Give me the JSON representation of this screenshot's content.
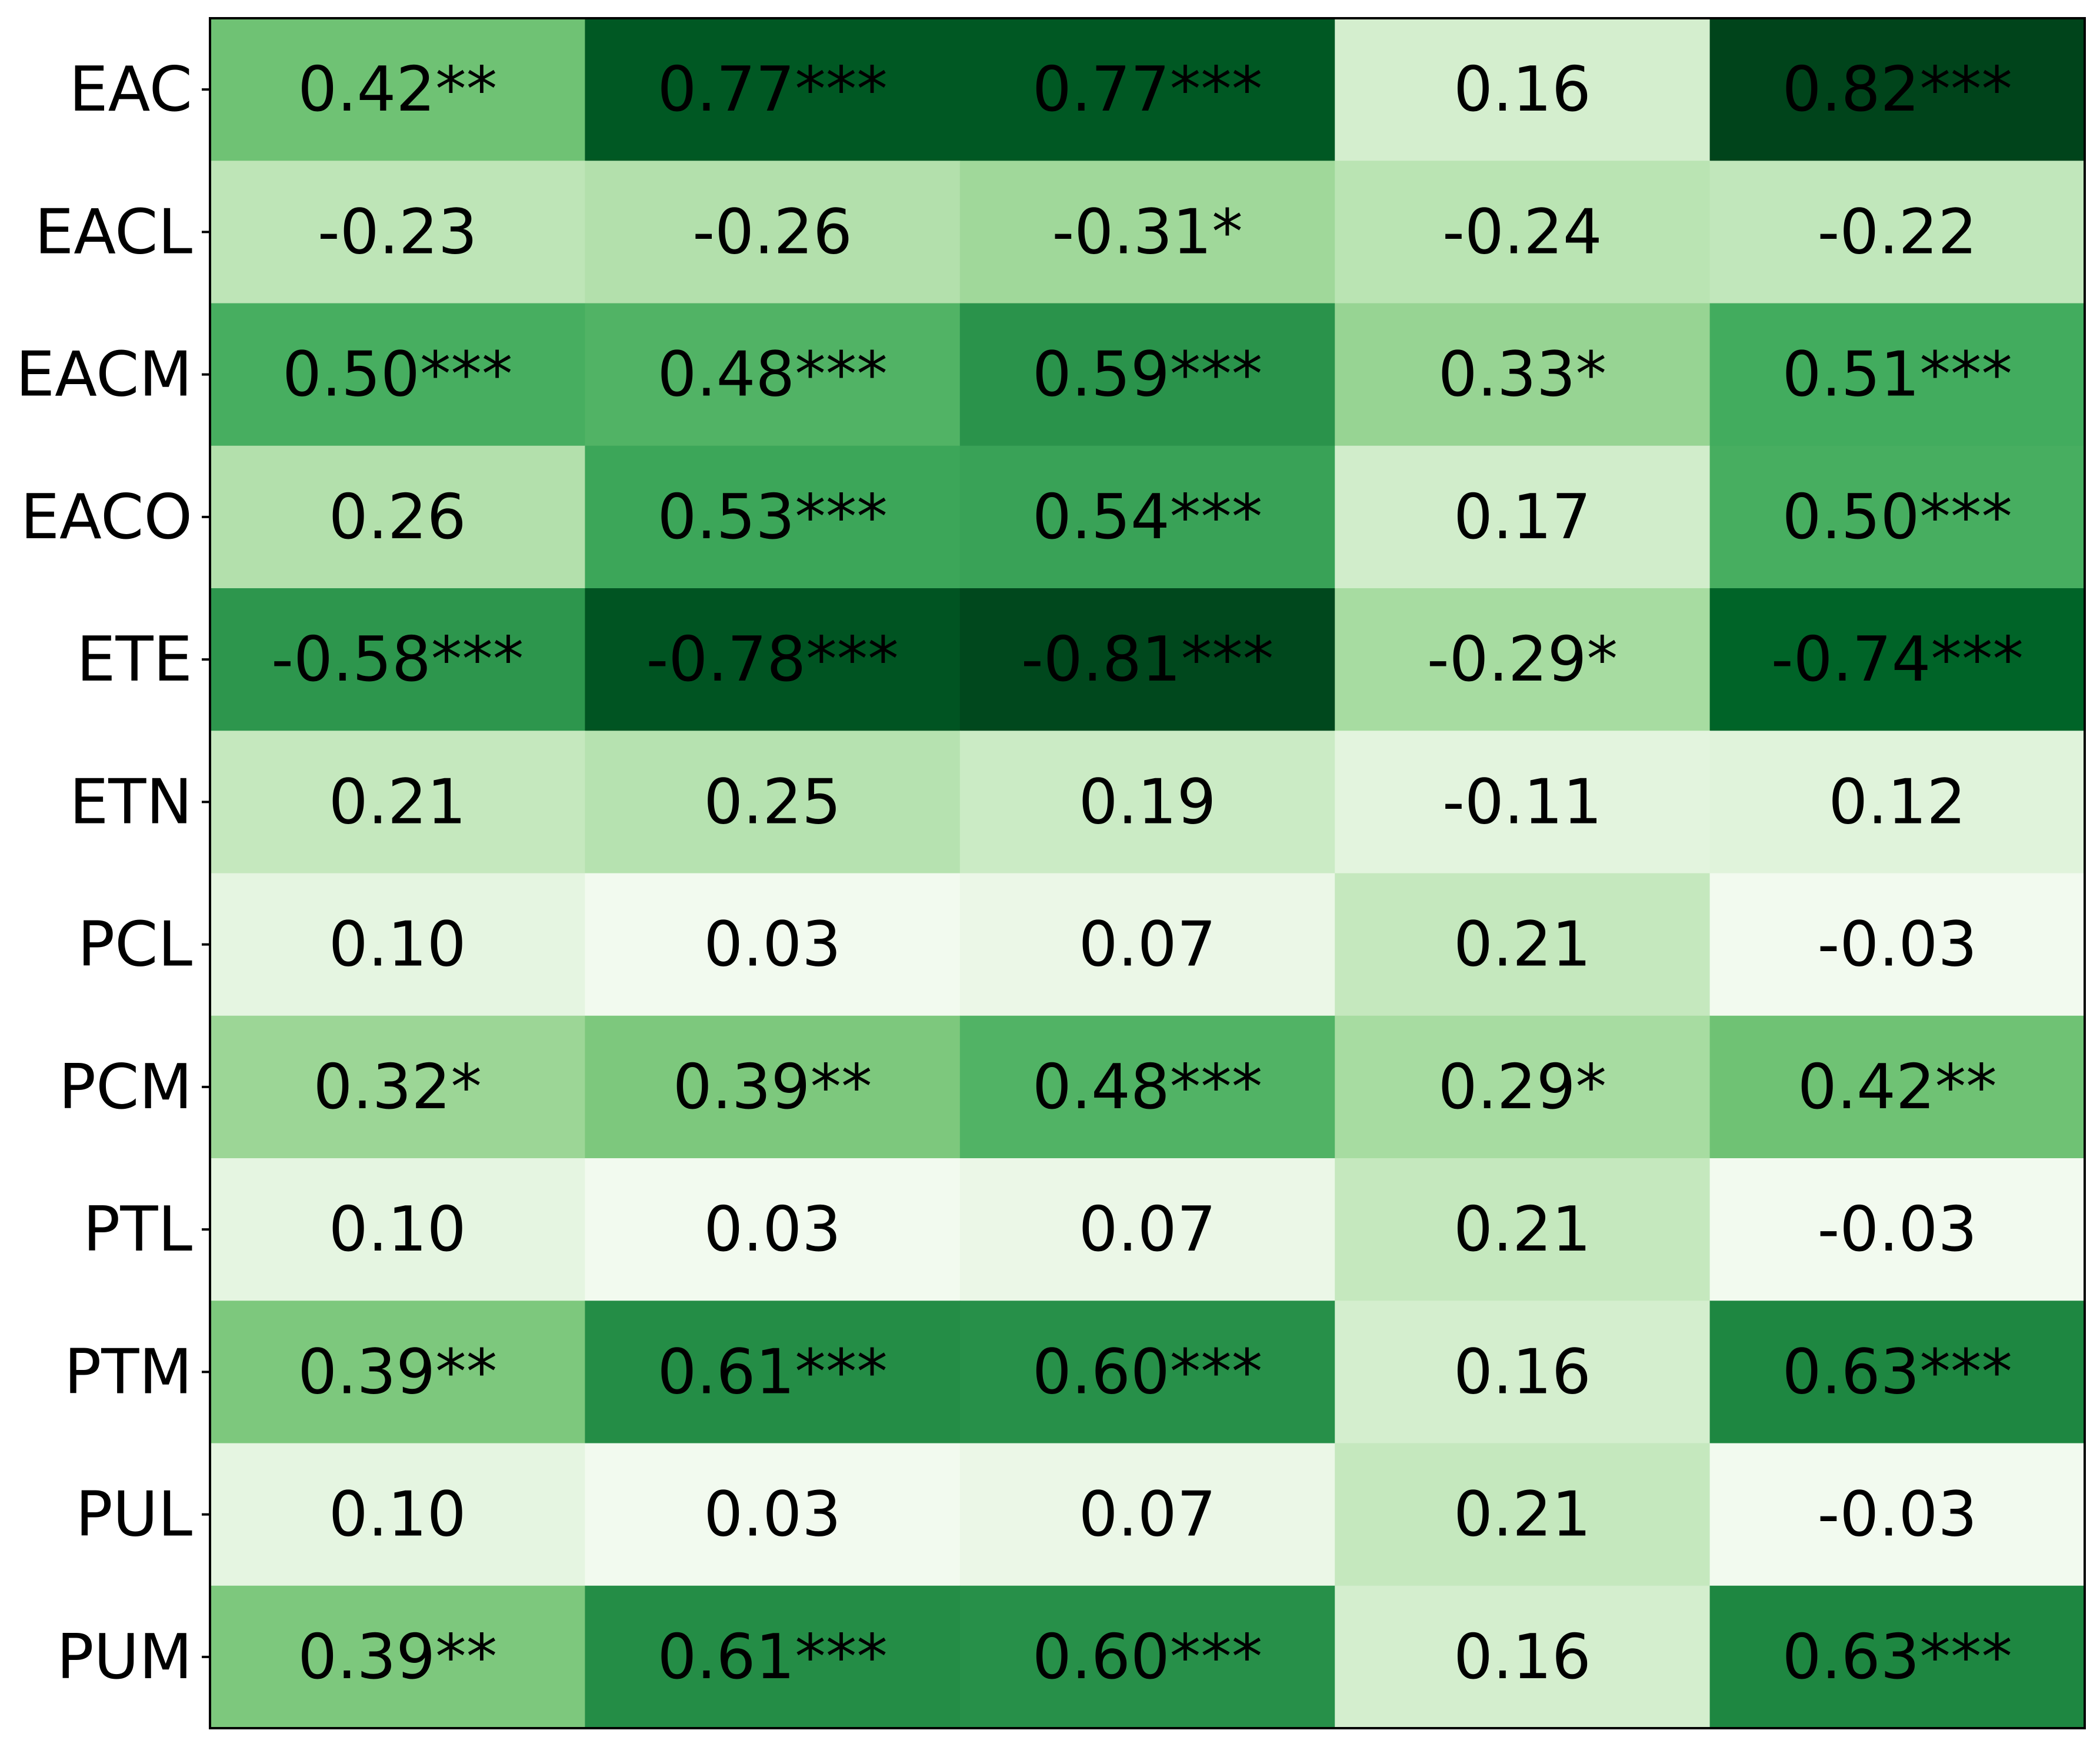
{
  "chart_data": {
    "type": "heatmap",
    "title": "",
    "xlabel": "",
    "ylabel": "",
    "colormap": "Greens",
    "color_value": "absolute",
    "color_range": [
      0,
      0.82
    ],
    "grid": false,
    "rows": [
      "EAC",
      "EACL",
      "EACM",
      "EACO",
      "ETE",
      "ETN",
      "PCL",
      "PCM",
      "PTL",
      "PTM",
      "PUL",
      "PUM"
    ],
    "columns": [
      "",
      "",
      "",
      "",
      ""
    ],
    "values": [
      [
        0.42,
        0.77,
        0.77,
        0.16,
        0.82
      ],
      [
        -0.23,
        -0.26,
        -0.31,
        -0.24,
        -0.22
      ],
      [
        0.5,
        0.48,
        0.59,
        0.33,
        0.51
      ],
      [
        0.26,
        0.53,
        0.54,
        0.17,
        0.5
      ],
      [
        -0.58,
        -0.78,
        -0.81,
        -0.29,
        -0.74
      ],
      [
        0.21,
        0.25,
        0.19,
        -0.11,
        0.12
      ],
      [
        0.1,
        0.03,
        0.07,
        0.21,
        -0.03
      ],
      [
        0.32,
        0.39,
        0.48,
        0.29,
        0.42
      ],
      [
        0.1,
        0.03,
        0.07,
        0.21,
        -0.03
      ],
      [
        0.39,
        0.61,
        0.6,
        0.16,
        0.63
      ],
      [
        0.1,
        0.03,
        0.07,
        0.21,
        -0.03
      ],
      [
        0.39,
        0.61,
        0.6,
        0.16,
        0.63
      ]
    ],
    "labels": [
      [
        "0.42**",
        "0.77***",
        "0.77***",
        "0.16",
        "0.82***"
      ],
      [
        "-0.23",
        "-0.26",
        "-0.31*",
        "-0.24",
        "-0.22"
      ],
      [
        "0.50***",
        "0.48***",
        "0.59***",
        "0.33*",
        "0.51***"
      ],
      [
        "0.26",
        "0.53***",
        "0.54***",
        "0.17",
        "0.50***"
      ],
      [
        "-0.58***",
        "-0.78***",
        "-0.81***",
        "-0.29*",
        "-0.74***"
      ],
      [
        "0.21",
        "0.25",
        "0.19",
        "-0.11",
        "0.12"
      ],
      [
        "0.10",
        "0.03",
        "0.07",
        "0.21",
        "-0.03"
      ],
      [
        "0.32*",
        "0.39**",
        "0.48***",
        "0.29*",
        "0.42**"
      ],
      [
        "0.10",
        "0.03",
        "0.07",
        "0.21",
        "-0.03"
      ],
      [
        "0.39**",
        "0.61***",
        "0.60***",
        "0.16",
        "0.63***"
      ],
      [
        "0.10",
        "0.03",
        "0.07",
        "0.21",
        "-0.03"
      ],
      [
        "0.39**",
        "0.61***",
        "0.60***",
        "0.16",
        "0.63***"
      ]
    ]
  }
}
